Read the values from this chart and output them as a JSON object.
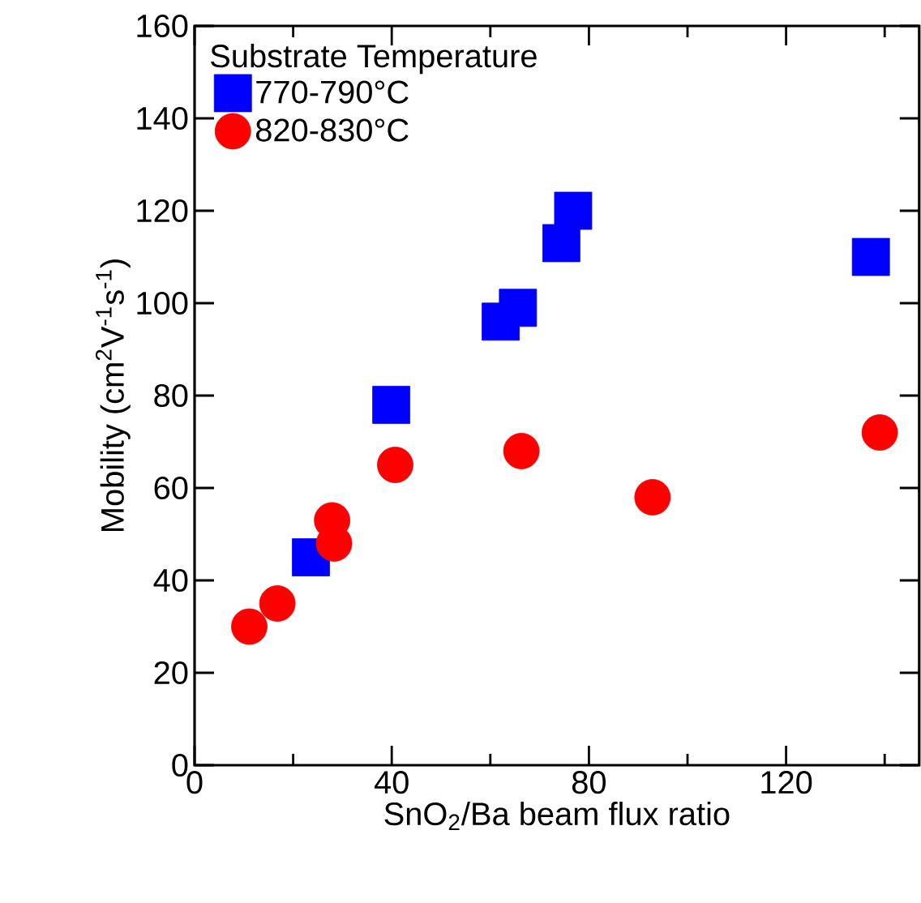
{
  "chart_data": {
    "type": "scatter",
    "xlabel": "SnO$_{2}$/Ba beam flux ratio",
    "ylabel": "Mobility (cm$^{2}$V$^{-1}$s$^{-1}$)",
    "legend_title": "Substrate Temperature",
    "legend": "top left",
    "grid": false,
    "xlim": [
      0,
      147
    ],
    "xticks": [
      0,
      {
        "value": 20,
        "label": null
      },
      40,
      {
        "value": 60,
        "label": null
      },
      80,
      {
        "value": 100,
        "label": null
      },
      120,
      {
        "value": 140,
        "label": null
      }
    ],
    "ylim": [
      0,
      160
    ],
    "yticks": [
      0,
      20,
      40,
      60,
      80,
      100,
      120,
      140,
      160
    ],
    "series": [
      {
        "name": "770-790°C",
        "color": "#0000ff",
        "marker": "square",
        "x": [
          23.6,
          39.9,
          62.1,
          65.6,
          74.4,
          76.8,
          137.2
        ],
        "values": [
          45,
          78,
          96,
          99,
          113,
          120,
          110
        ]
      },
      {
        "name": "820-830°C",
        "color": "#ff0000",
        "marker": "circle",
        "x": [
          11.1,
          16.8,
          27.9,
          28.3,
          40.7,
          66.3,
          92.9,
          139
        ],
        "values": [
          30,
          35,
          53,
          48,
          65,
          68,
          58,
          72
        ]
      }
    ]
  }
}
